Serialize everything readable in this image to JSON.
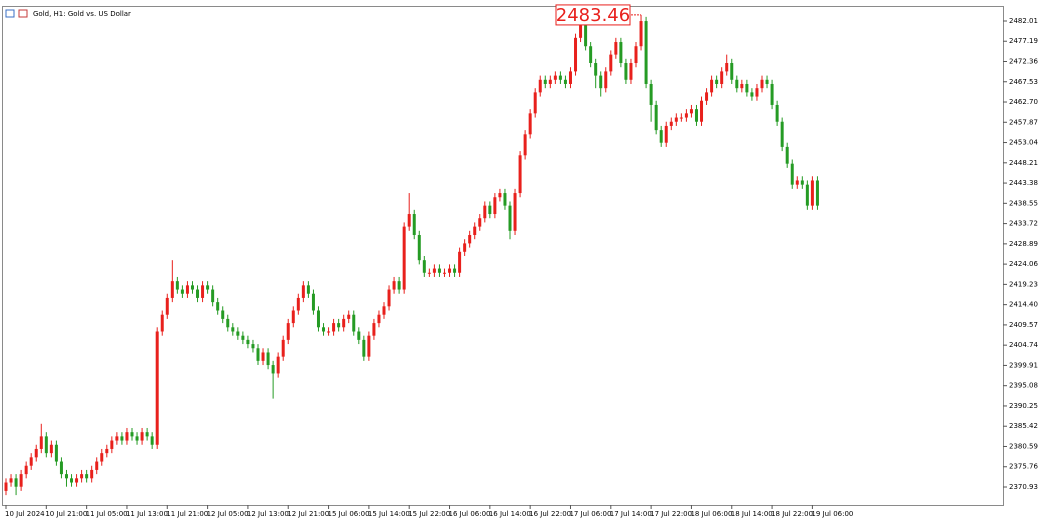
{
  "chart_data": {
    "type": "candlestick",
    "title": "Gold, H1: Gold vs. US Dollar",
    "up_color": "#e8201c",
    "down_color": "#259b24",
    "ylim": [
      2366.64,
      2485.35
    ],
    "yticks": [
      2370.93,
      2375.76,
      2380.59,
      2385.42,
      2390.25,
      2395.08,
      2399.91,
      2404.74,
      2409.57,
      {
        "value": 2414.4,
        "label": "2414.40"
      },
      2419.23,
      2424.06,
      2428.89,
      2433.72,
      2438.55,
      2443.38,
      2448.21,
      2453.04,
      2457.87,
      {
        "value": 2462.7,
        "label": "2462.70"
      },
      2467.53,
      2472.36,
      2477.19,
      2482.01
    ],
    "high_label_index": 126,
    "categories": [
      "10 Jul 2024",
      null,
      null,
      null,
      null,
      null,
      null,
      null,
      "10 Jul 21:00",
      null,
      null,
      null,
      null,
      null,
      null,
      null,
      "11 Jul 05:00",
      null,
      null,
      null,
      null,
      null,
      null,
      null,
      "11 Jul 13:00",
      null,
      null,
      null,
      null,
      null,
      null,
      null,
      "11 Jul 21:00",
      null,
      null,
      null,
      null,
      null,
      null,
      null,
      "12 Jul 05:00",
      null,
      null,
      null,
      null,
      null,
      null,
      null,
      "12 Jul 13:00",
      null,
      null,
      null,
      null,
      null,
      null,
      null,
      "12 Jul 21:00",
      null,
      null,
      null,
      null,
      null,
      null,
      null,
      "15 Jul 06:00",
      null,
      null,
      null,
      null,
      null,
      null,
      null,
      "15 Jul 14:00",
      null,
      null,
      null,
      null,
      null,
      null,
      null,
      "15 Jul 22:00",
      null,
      null,
      null,
      null,
      null,
      null,
      null,
      "16 Jul 06:00",
      null,
      null,
      null,
      null,
      null,
      null,
      null,
      "16 Jul 14:00",
      null,
      null,
      null,
      null,
      null,
      null,
      null,
      "16 Jul 22:00",
      null,
      null,
      null,
      null,
      null,
      null,
      null,
      "17 Jul 06:00",
      null,
      null,
      null,
      null,
      null,
      null,
      null,
      "17 Jul 14:00",
      null,
      null,
      null,
      null,
      null,
      null,
      null,
      "17 Jul 22:00",
      null,
      null,
      null,
      null,
      null,
      null,
      null,
      "18 Jul 06:00",
      null,
      null,
      null,
      null,
      null,
      null,
      null,
      "18 Jul 14:00",
      null,
      null,
      null,
      null,
      null,
      null,
      null,
      "18 Jul 22:00",
      null,
      null,
      null,
      null,
      null,
      null,
      null,
      "19 Jul 06:00",
      null
    ],
    "candles": [
      [
        2370,
        2373,
        2369,
        2372
      ],
      [
        2372,
        2374,
        2371,
        2373
      ],
      [
        2373,
        2374,
        2369,
        2371
      ],
      [
        2371,
        2375,
        2370,
        2374
      ],
      [
        2374,
        2377,
        2373,
        2376
      ],
      [
        2376,
        2379,
        2375,
        2378
      ],
      [
        2378,
        2381,
        2377,
        2380
      ],
      [
        2380,
        2386,
        2379,
        2383
      ],
      [
        2383,
        2384,
        2378,
        2379
      ],
      [
        2379,
        2382,
        2378,
        2381
      ],
      [
        2381,
        2382,
        2376,
        2377
      ],
      [
        2377,
        2378,
        2373,
        2374
      ],
      [
        2374,
        2375,
        2371,
        2373
      ],
      [
        2373,
        2374,
        2371,
        2372
      ],
      [
        2372,
        2374,
        2371,
        2373
      ],
      [
        2373,
        2375,
        2372,
        2374
      ],
      [
        2374,
        2375,
        2372,
        2373
      ],
      [
        2373,
        2376,
        2372,
        2375
      ],
      [
        2375,
        2378,
        2374,
        2377
      ],
      [
        2377,
        2380,
        2376,
        2379
      ],
      [
        2379,
        2381,
        2378,
        2380
      ],
      [
        2380,
        2383,
        2379,
        2382
      ],
      [
        2382,
        2384,
        2381,
        2383
      ],
      [
        2383,
        2384,
        2381,
        2382
      ],
      [
        2382,
        2385,
        2381,
        2384
      ],
      [
        2384,
        2385,
        2382,
        2383
      ],
      [
        2383,
        2384,
        2381,
        2382
      ],
      [
        2382,
        2385,
        2381,
        2384
      ],
      [
        2384,
        2385,
        2382,
        2383
      ],
      [
        2383,
        2384,
        2380,
        2381
      ],
      [
        2381,
        2409,
        2380,
        2408
      ],
      [
        2408,
        2413,
        2407,
        2412
      ],
      [
        2412,
        2417,
        2411,
        2416
      ],
      [
        2416,
        2425,
        2415,
        2420
      ],
      [
        2420,
        2421,
        2417,
        2418
      ],
      [
        2418,
        2419,
        2416,
        2417
      ],
      [
        2417,
        2420,
        2416,
        2419
      ],
      [
        2419,
        2420,
        2417,
        2418
      ],
      [
        2418,
        2419,
        2415,
        2416
      ],
      [
        2416,
        2420,
        2415,
        2419
      ],
      [
        2419,
        2420,
        2417,
        2418
      ],
      [
        2418,
        2419,
        2414,
        2415
      ],
      [
        2415,
        2416,
        2412,
        2413
      ],
      [
        2413,
        2414,
        2410,
        2411
      ],
      [
        2411,
        2412,
        2408,
        2409
      ],
      [
        2409,
        2410,
        2407,
        2408
      ],
      [
        2408,
        2409,
        2406,
        2407
      ],
      [
        2407,
        2408,
        2405,
        2406
      ],
      [
        2406,
        2407,
        2404,
        2405
      ],
      [
        2405,
        2406,
        2403,
        2404
      ],
      [
        2404,
        2405,
        2400,
        2401
      ],
      [
        2401,
        2404,
        2400,
        2403
      ],
      [
        2403,
        2404,
        2399,
        2400
      ],
      [
        2400,
        2401,
        2392,
        2398
      ],
      [
        2398,
        2403,
        2397,
        2402
      ],
      [
        2402,
        2407,
        2401,
        2406
      ],
      [
        2406,
        2411,
        2405,
        2410
      ],
      [
        2410,
        2414,
        2409,
        2413
      ],
      [
        2413,
        2417,
        2412,
        2416
      ],
      [
        2416,
        2420,
        2415,
        2419
      ],
      [
        2419,
        2420,
        2416,
        2417
      ],
      [
        2417,
        2418,
        2412,
        2413
      ],
      [
        2413,
        2414,
        2408,
        2409
      ],
      [
        2409,
        2410,
        2407,
        2408
      ],
      [
        2408,
        2409,
        2407,
        2408
      ],
      [
        2408,
        2411,
        2407,
        2410
      ],
      [
        2410,
        2411,
        2408,
        2409
      ],
      [
        2409,
        2412,
        2408,
        2411
      ],
      [
        2411,
        2413,
        2410,
        2412
      ],
      [
        2412,
        2413,
        2407,
        2408
      ],
      [
        2408,
        2409,
        2405,
        2406
      ],
      [
        2406,
        2407,
        2401,
        2402
      ],
      [
        2402,
        2408,
        2401,
        2407
      ],
      [
        2407,
        2411,
        2406,
        2410
      ],
      [
        2410,
        2413,
        2409,
        2412
      ],
      [
        2412,
        2415,
        2411,
        2414
      ],
      [
        2414,
        2419,
        2413,
        2418
      ],
      [
        2418,
        2421,
        2417,
        2420
      ],
      [
        2420,
        2421,
        2417,
        2418
      ],
      [
        2418,
        2434,
        2417,
        2433
      ],
      [
        2433,
        2441,
        2432,
        2436
      ],
      [
        2436,
        2437,
        2430,
        2431
      ],
      [
        2431,
        2432,
        2424,
        2425
      ],
      [
        2425,
        2426,
        2421,
        2422
      ],
      [
        2422,
        2423,
        2421,
        2422
      ],
      [
        2422,
        2424,
        2421,
        2423
      ],
      [
        2423,
        2424,
        2421,
        2422
      ],
      [
        2422,
        2423,
        2421,
        2422
      ],
      [
        2422,
        2424,
        2421,
        2423
      ],
      [
        2423,
        2424,
        2421,
        2422
      ],
      [
        2422,
        2428,
        2421,
        2427
      ],
      [
        2427,
        2430,
        2426,
        2429
      ],
      [
        2429,
        2432,
        2428,
        2431
      ],
      [
        2431,
        2434,
        2430,
        2433
      ],
      [
        2433,
        2436,
        2432,
        2435
      ],
      [
        2435,
        2439,
        2434,
        2438
      ],
      [
        2438,
        2439,
        2435,
        2436
      ],
      [
        2436,
        2441,
        2435,
        2440
      ],
      [
        2440,
        2442,
        2439,
        2441
      ],
      [
        2441,
        2442,
        2437,
        2438
      ],
      [
        2438,
        2439,
        2430,
        2432
      ],
      [
        2432,
        2442,
        2431,
        2441
      ],
      [
        2441,
        2451,
        2440,
        2450
      ],
      [
        2450,
        2456,
        2449,
        2455
      ],
      [
        2455,
        2461,
        2454,
        2460
      ],
      [
        2460,
        2466,
        2459,
        2465
      ],
      [
        2465,
        2469,
        2464,
        2468
      ],
      [
        2468,
        2469,
        2466,
        2467
      ],
      [
        2467,
        2469,
        2466,
        2468
      ],
      [
        2468,
        2470,
        2467,
        2469
      ],
      [
        2469,
        2470,
        2467,
        2468
      ],
      [
        2468,
        2469,
        2466,
        2467
      ],
      [
        2467,
        2471,
        2466,
        2470
      ],
      [
        2470,
        2479,
        2469,
        2478
      ],
      [
        2478,
        2482,
        2477,
        2481
      ],
      [
        2481,
        2482,
        2475,
        2476
      ],
      [
        2476,
        2477,
        2471,
        2472
      ],
      [
        2472,
        2473,
        2466,
        2469
      ],
      [
        2469,
        2470,
        2464,
        2466
      ],
      [
        2466,
        2471,
        2465,
        2470
      ],
      [
        2470,
        2475,
        2469,
        2474
      ],
      [
        2474,
        2478,
        2473,
        2477
      ],
      [
        2477,
        2478,
        2471,
        2472
      ],
      [
        2472,
        2473,
        2467,
        2468
      ],
      [
        2468,
        2473,
        2467,
        2472
      ],
      [
        2472,
        2477,
        2471,
        2476
      ],
      [
        2476,
        2483.46,
        2475,
        2482
      ],
      [
        2482,
        2483,
        2466,
        2467
      ],
      [
        2467,
        2468,
        2458,
        2462
      ],
      [
        2462,
        2463,
        2455,
        2456
      ],
      [
        2456,
        2457,
        2452,
        2453
      ],
      [
        2453,
        2458,
        2452,
        2457
      ],
      [
        2457,
        2459,
        2456,
        2458
      ],
      [
        2458,
        2460,
        2457,
        2459
      ],
      [
        2459,
        2460,
        2458,
        2459
      ],
      [
        2459,
        2461,
        2458,
        2460
      ],
      [
        2460,
        2462,
        2459,
        2461
      ],
      [
        2461,
        2462,
        2457,
        2458
      ],
      [
        2458,
        2464,
        2457,
        2463
      ],
      [
        2463,
        2466,
        2462,
        2465
      ],
      [
        2465,
        2469,
        2464,
        2468
      ],
      [
        2468,
        2469,
        2466,
        2467
      ],
      [
        2467,
        2471,
        2466,
        2470
      ],
      [
        2470,
        2474,
        2469,
        2472
      ],
      [
        2472,
        2473,
        2467,
        2468
      ],
      [
        2468,
        2469,
        2465,
        2466
      ],
      [
        2466,
        2468,
        2465,
        2467
      ],
      [
        2467,
        2468,
        2464,
        2465
      ],
      [
        2465,
        2466,
        2463,
        2464
      ],
      [
        2464,
        2467,
        2463,
        2466
      ],
      [
        2466,
        2469,
        2465,
        2468
      ],
      [
        2468,
        2469,
        2466,
        2467
      ],
      [
        2467,
        2468,
        2461,
        2462
      ],
      [
        2462,
        2463,
        2457,
        2458
      ],
      [
        2458,
        2459,
        2451,
        2452
      ],
      [
        2452,
        2453,
        2447,
        2448
      ],
      [
        2448,
        2449,
        2442,
        2443
      ],
      [
        2443,
        2445,
        2442,
        2444
      ],
      [
        2444,
        2445,
        2442,
        2443
      ],
      [
        2443,
        2444,
        2437,
        2438
      ],
      [
        2438,
        2445,
        2437,
        2444
      ],
      [
        2444,
        2445,
        2437,
        2438
      ]
    ]
  }
}
